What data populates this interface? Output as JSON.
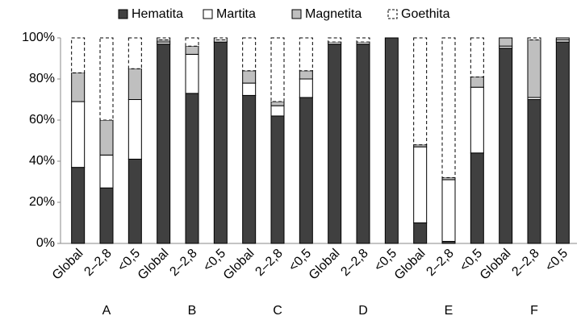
{
  "chart_data": {
    "type": "stacked-bar",
    "categories": [
      "Global",
      "2–2,8",
      "<0,5",
      "Global",
      "2–2,8",
      "<0,5",
      "Global",
      "2–2,8",
      "<0,5",
      "Global",
      "2–2,8",
      "<0,5",
      "Global",
      "2–2,8",
      "<0,5",
      "Global",
      "2–2,8",
      "<0,5"
    ],
    "groups": [
      "A",
      "B",
      "C",
      "D",
      "E",
      "F"
    ],
    "series": [
      {
        "name": "Hematita",
        "color": "#404040",
        "dashed": false,
        "values": [
          37,
          27,
          41,
          97,
          73,
          98,
          72,
          62,
          71,
          97,
          97,
          100,
          10,
          1,
          44,
          95,
          70,
          98
        ]
      },
      {
        "name": "Martita",
        "color": "#ffffff",
        "dashed": false,
        "values": [
          32,
          16,
          29,
          1,
          19,
          1,
          6,
          5,
          9,
          1,
          1,
          0,
          37,
          30,
          32,
          1,
          1,
          1
        ]
      },
      {
        "name": "Magnetita",
        "color": "#bfbfbf",
        "dashed": false,
        "values": [
          14,
          17,
          15,
          1,
          4,
          0,
          6,
          2,
          4,
          0,
          0,
          0,
          1,
          1,
          5,
          4,
          28,
          1
        ]
      },
      {
        "name": "Goethita",
        "color": "#ffffff",
        "dashed": true,
        "values": [
          17,
          40,
          15,
          1,
          4,
          1,
          16,
          31,
          16,
          2,
          2,
          0,
          52,
          68,
          19,
          0,
          1,
          0
        ]
      }
    ],
    "ylim": [
      0,
      100
    ],
    "yticks": [
      {
        "value": 0,
        "label": "0%"
      },
      {
        "value": 20,
        "label": "20%"
      },
      {
        "value": 40,
        "label": "40%"
      },
      {
        "value": 60,
        "label": "60%"
      },
      {
        "value": 80,
        "label": "80%"
      },
      {
        "value": 100,
        "label": "100%"
      }
    ],
    "legend": "top"
  }
}
